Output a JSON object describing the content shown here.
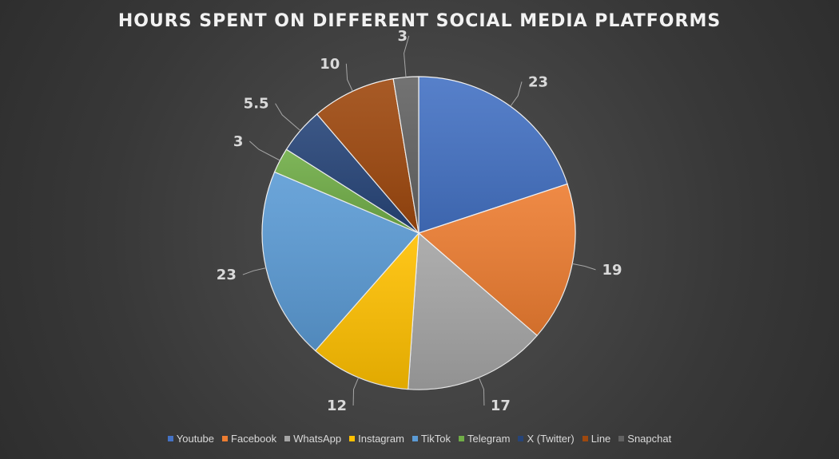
{
  "chart_data": {
    "type": "pie",
    "title": "HOURS SPENT ON DIFFERENT SOCIAL MEDIA PLATFORMS",
    "categories": [
      "Youtube",
      "Facebook",
      "WhatsApp",
      "Instagram",
      "TikTok",
      "Telegram",
      "X (Twitter)",
      "Line",
      "Snapchat"
    ],
    "values": [
      23,
      19,
      17,
      12,
      23,
      3,
      5.5,
      10,
      3
    ],
    "colors": [
      "#4472C4",
      "#ED7D31",
      "#A5A5A5",
      "#FFC000",
      "#5B9BD5",
      "#70AD47",
      "#264478",
      "#9E480E",
      "#636363"
    ],
    "legend_position": "bottom",
    "data_labels": true
  }
}
